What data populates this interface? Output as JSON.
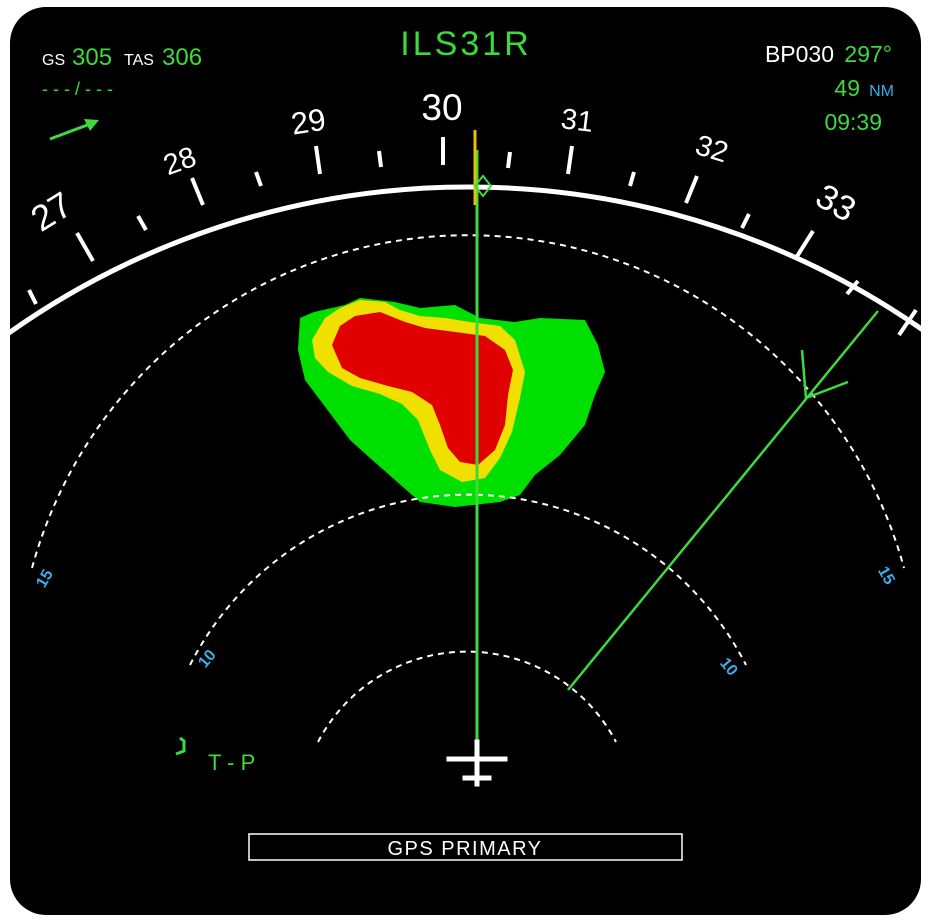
{
  "approach": "ILS31R",
  "speeds": {
    "gs_label": "GS",
    "gs_value": "305",
    "tas_label": "TAS",
    "tas_value": "306",
    "wind": "- - - / - - -"
  },
  "waypoint": {
    "name": "BP030",
    "bearing": "297°",
    "distance": "49",
    "distance_unit": "NM",
    "eta": "09:39"
  },
  "compass": {
    "labels": [
      "27",
      "28",
      "29",
      "30",
      "31",
      "32",
      "33"
    ]
  },
  "range_rings": {
    "outer": "15",
    "middle": "10"
  },
  "tp_label": "T - P",
  "status_message": "GPS PRIMARY",
  "colors": {
    "green": "#3dd93d",
    "cyan": "#39aee8",
    "yellow_cursor": "#e8c000",
    "wx_green": "#00e000",
    "wx_yellow": "#f0e000",
    "wx_red": "#e00000"
  }
}
